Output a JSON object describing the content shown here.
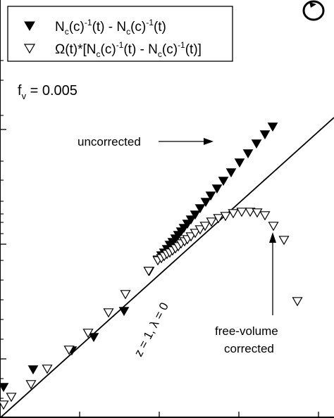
{
  "chart_data": {
    "type": "scatter",
    "title": "",
    "xlabel": "",
    "ylabel": "",
    "xlim": [
      0,
      474
    ],
    "ylim": [
      0,
      594
    ],
    "x_ticks": [
      0,
      113,
      226,
      339,
      452
    ],
    "y_ticks_major": [
      84,
      247,
      410
    ],
    "y_ticks_minor": [
      28,
      56,
      112,
      140,
      168,
      196,
      224,
      262,
      278,
      290,
      308,
      338,
      365,
      430,
      480,
      508
    ],
    "legend": {
      "placement": "top-left",
      "entries": [
        {
          "marker": "filled-down-triangle",
          "label_parts": [
            "N",
            "c",
            "(c)",
            "-1",
            "(t) - N",
            "c",
            "(c)",
            "-1",
            "(t)"
          ]
        },
        {
          "marker": "open-down-triangle",
          "label_parts": [
            "Ω(t)*[N",
            "c",
            "(c)",
            "-1",
            "(t) - N",
            "c",
            "(c)",
            "-1",
            "(t)]"
          ]
        }
      ]
    },
    "fv_label": {
      "base": "f",
      "sub": "v",
      "rest": " = 0.005"
    },
    "annotations": {
      "uncorrected": "uncorrected",
      "free_volume_line1": "free-volume",
      "free_volume_line2": "corrected",
      "line_label": "z = 1, λ = 0"
    },
    "reference_line": {
      "x": [
        0,
        474
      ],
      "y": [
        0,
        427
      ]
    },
    "series": [
      {
        "marker": "filled",
        "points": [
          [
            5,
            44
          ],
          [
            47,
            69
          ],
          [
            102,
            96
          ],
          [
            133,
            115
          ],
          [
            176,
            152
          ],
          [
            212,
            209
          ],
          [
            224,
            225
          ],
          [
            229,
            231
          ],
          [
            233,
            235
          ],
          [
            237,
            240
          ],
          [
            241,
            246
          ],
          [
            245,
            250
          ],
          [
            249,
            255
          ],
          [
            253,
            260
          ],
          [
            257,
            265
          ],
          [
            261,
            270
          ],
          [
            266,
            276
          ],
          [
            271,
            282
          ],
          [
            277,
            289
          ],
          [
            284,
            298
          ],
          [
            292,
            307
          ],
          [
            299,
            316
          ],
          [
            308,
            326
          ],
          [
            317,
            337
          ],
          [
            328,
            349
          ],
          [
            340,
            363
          ],
          [
            352,
            376
          ],
          [
            364,
            390
          ],
          [
            376,
            403
          ],
          [
            387,
            414
          ]
        ]
      },
      {
        "marker": "open",
        "points": [
          [
            5,
            19
          ],
          [
            16,
            30
          ],
          [
            44,
            48
          ],
          [
            67,
            70
          ],
          [
            98,
            97
          ],
          [
            125,
            121
          ],
          [
            154,
            150
          ],
          [
            178,
            176
          ],
          [
            211,
            209
          ],
          [
            224,
            224
          ],
          [
            229,
            227
          ],
          [
            233,
            230
          ],
          [
            237,
            233
          ],
          [
            241,
            235
          ],
          [
            245,
            238
          ],
          [
            249,
            241
          ],
          [
            253,
            244
          ],
          [
            257,
            248
          ],
          [
            262,
            251
          ],
          [
            266,
            254
          ],
          [
            271,
            258
          ],
          [
            277,
            263
          ],
          [
            284,
            268
          ],
          [
            291,
            273
          ],
          [
            300,
            279
          ],
          [
            310,
            284
          ],
          [
            320,
            287
          ],
          [
            331,
            291
          ],
          [
            343,
            293
          ],
          [
            355,
            293
          ],
          [
            365,
            292
          ],
          [
            376,
            288
          ],
          [
            388,
            273
          ],
          [
            403,
            253
          ],
          [
            422,
            166
          ]
        ]
      }
    ]
  },
  "rotation_icon": "rotation-circle-icon"
}
